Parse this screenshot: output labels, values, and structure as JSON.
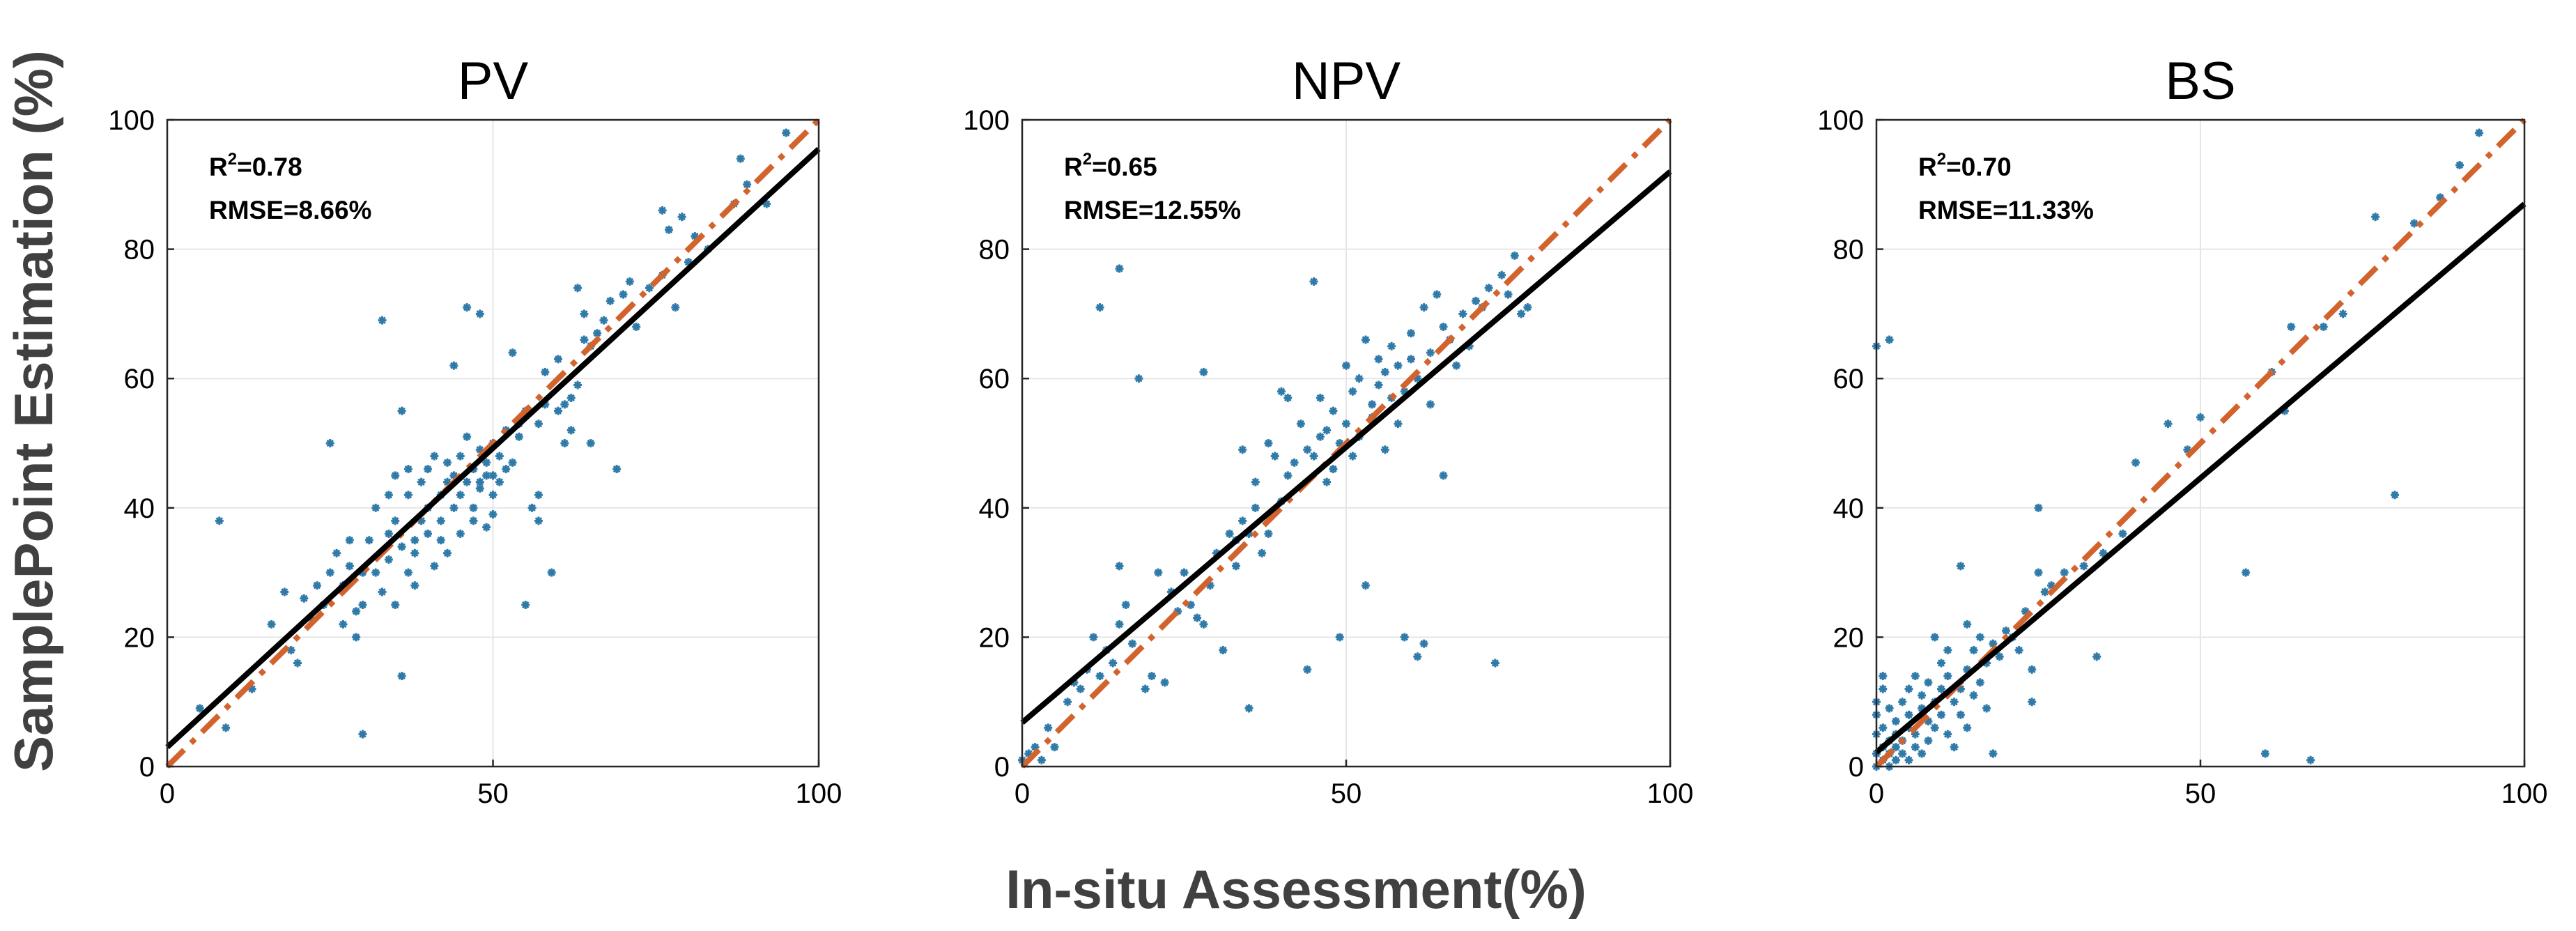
{
  "figure": {
    "ylabel": "SamplePoint Estimation (%)",
    "xlabel": "In-situ Assessment(%)"
  },
  "colors": {
    "points": "#2f7aa8",
    "fit_line": "#000000",
    "identity_line": "#d2632d"
  },
  "chart_data": [
    {
      "type": "scatter",
      "title": "PV",
      "stats": {
        "r2_label": "R",
        "r2_sup": "2",
        "r2_value": "=0.78",
        "rmse": "RMSE=8.66%"
      },
      "xlim": [
        0,
        100
      ],
      "ylim": [
        0,
        100
      ],
      "xticks": [
        0,
        50,
        100
      ],
      "yticks": [
        0,
        20,
        40,
        60,
        80,
        100
      ],
      "grid": true,
      "fit_line": {
        "y_at_0": 3,
        "y_at_100": 95.5
      },
      "identity_line": true,
      "points": [
        [
          5,
          9
        ],
        [
          8,
          38
        ],
        [
          9,
          6
        ],
        [
          13,
          12
        ],
        [
          16,
          22
        ],
        [
          18,
          27
        ],
        [
          19,
          18
        ],
        [
          20,
          16
        ],
        [
          21,
          26
        ],
        [
          22,
          23
        ],
        [
          23,
          28
        ],
        [
          24,
          25
        ],
        [
          25,
          50
        ],
        [
          25,
          30
        ],
        [
          26,
          33
        ],
        [
          27,
          28
        ],
        [
          27,
          22
        ],
        [
          28,
          31
        ],
        [
          28,
          35
        ],
        [
          29,
          24
        ],
        [
          29,
          20
        ],
        [
          30,
          25
        ],
        [
          30,
          30
        ],
        [
          30,
          5
        ],
        [
          31,
          35
        ],
        [
          32,
          40
        ],
        [
          32,
          30
        ],
        [
          33,
          27
        ],
        [
          33,
          69
        ],
        [
          34,
          32
        ],
        [
          34,
          36
        ],
        [
          34,
          42
        ],
        [
          35,
          38
        ],
        [
          35,
          25
        ],
        [
          35,
          45
        ],
        [
          36,
          14
        ],
        [
          36,
          34
        ],
        [
          36,
          55
        ],
        [
          37,
          30
        ],
        [
          37,
          42
        ],
        [
          37,
          46
        ],
        [
          38,
          35
        ],
        [
          38,
          33
        ],
        [
          38,
          28
        ],
        [
          39,
          44
        ],
        [
          39,
          38
        ],
        [
          40,
          40
        ],
        [
          40,
          36
        ],
        [
          40,
          46
        ],
        [
          41,
          48
        ],
        [
          41,
          31
        ],
        [
          42,
          42
        ],
        [
          42,
          38
        ],
        [
          42,
          35
        ],
        [
          43,
          44
        ],
        [
          43,
          47
        ],
        [
          43,
          33
        ],
        [
          44,
          40
        ],
        [
          44,
          45
        ],
        [
          44,
          62
        ],
        [
          45,
          36
        ],
        [
          45,
          42
        ],
        [
          45,
          48
        ],
        [
          46,
          44
        ],
        [
          46,
          71
        ],
        [
          46,
          51
        ],
        [
          47,
          40
        ],
        [
          47,
          46
        ],
        [
          47,
          38
        ],
        [
          48,
          43
        ],
        [
          48,
          44
        ],
        [
          48,
          70
        ],
        [
          48,
          49
        ],
        [
          49,
          45
        ],
        [
          49,
          47
        ],
        [
          49,
          37
        ],
        [
          50,
          50
        ],
        [
          50,
          45
        ],
        [
          50,
          42
        ],
        [
          50,
          39
        ],
        [
          51,
          44
        ],
        [
          51,
          48
        ],
        [
          52,
          46
        ],
        [
          52,
          52
        ],
        [
          53,
          47
        ],
        [
          53,
          64
        ],
        [
          54,
          53
        ],
        [
          54,
          51
        ],
        [
          55,
          25
        ],
        [
          55,
          55
        ],
        [
          56,
          40
        ],
        [
          57,
          42
        ],
        [
          57,
          38
        ],
        [
          57,
          53
        ],
        [
          58,
          56
        ],
        [
          58,
          61
        ],
        [
          59,
          30
        ],
        [
          60,
          63
        ],
        [
          60,
          55
        ],
        [
          61,
          56
        ],
        [
          61,
          50
        ],
        [
          62,
          57
        ],
        [
          62,
          52
        ],
        [
          63,
          59
        ],
        [
          63,
          74
        ],
        [
          64,
          70
        ],
        [
          64,
          66
        ],
        [
          65,
          65
        ],
        [
          65,
          50
        ],
        [
          66,
          67
        ],
        [
          67,
          69
        ],
        [
          68,
          72
        ],
        [
          69,
          46
        ],
        [
          70,
          73
        ],
        [
          71,
          75
        ],
        [
          72,
          68
        ],
        [
          74,
          74
        ],
        [
          76,
          76
        ],
        [
          76,
          86
        ],
        [
          77,
          83
        ],
        [
          78,
          71
        ],
        [
          79,
          85
        ],
        [
          80,
          78
        ],
        [
          81,
          82
        ],
        [
          83,
          80
        ],
        [
          87,
          87
        ],
        [
          88,
          94
        ],
        [
          89,
          90
        ],
        [
          92,
          87
        ],
        [
          95,
          98
        ]
      ]
    },
    {
      "type": "scatter",
      "title": "NPV",
      "stats": {
        "r2_label": "R",
        "r2_sup": "2",
        "r2_value": "=0.65",
        "rmse": "RMSE=12.55%"
      },
      "xlim": [
        0,
        100
      ],
      "ylim": [
        0,
        100
      ],
      "xticks": [
        0,
        50,
        100
      ],
      "yticks": [
        0,
        20,
        40,
        60,
        80,
        100
      ],
      "grid": true,
      "fit_line": {
        "y_at_0": 6.8,
        "y_at_100": 92
      },
      "identity_line": true,
      "points": [
        [
          0,
          1
        ],
        [
          1,
          2
        ],
        [
          2,
          3
        ],
        [
          3,
          1
        ],
        [
          4,
          6
        ],
        [
          5,
          3
        ],
        [
          7,
          10
        ],
        [
          8,
          13
        ],
        [
          9,
          12
        ],
        [
          10,
          15
        ],
        [
          11,
          20
        ],
        [
          12,
          71
        ],
        [
          12,
          14
        ],
        [
          13,
          18
        ],
        [
          14,
          16
        ],
        [
          15,
          77
        ],
        [
          15,
          31
        ],
        [
          15,
          22
        ],
        [
          16,
          25
        ],
        [
          17,
          19
        ],
        [
          18,
          60
        ],
        [
          19,
          12
        ],
        [
          20,
          14
        ],
        [
          21,
          30
        ],
        [
          22,
          13
        ],
        [
          23,
          27
        ],
        [
          24,
          24
        ],
        [
          25,
          30
        ],
        [
          26,
          25
        ],
        [
          27,
          23
        ],
        [
          28,
          22
        ],
        [
          28,
          61
        ],
        [
          29,
          28
        ],
        [
          30,
          33
        ],
        [
          31,
          18
        ],
        [
          32,
          36
        ],
        [
          33,
          35
        ],
        [
          33,
          31
        ],
        [
          34,
          38
        ],
        [
          34,
          49
        ],
        [
          35,
          36
        ],
        [
          35,
          9
        ],
        [
          36,
          40
        ],
        [
          36,
          44
        ],
        [
          37,
          33
        ],
        [
          38,
          50
        ],
        [
          38,
          36
        ],
        [
          39,
          48
        ],
        [
          40,
          58
        ],
        [
          40,
          41
        ],
        [
          41,
          45
        ],
        [
          41,
          57
        ],
        [
          42,
          47
        ],
        [
          43,
          53
        ],
        [
          44,
          15
        ],
        [
          44,
          49
        ],
        [
          45,
          75
        ],
        [
          45,
          48
        ],
        [
          46,
          51
        ],
        [
          46,
          57
        ],
        [
          47,
          44
        ],
        [
          47,
          52
        ],
        [
          48,
          55
        ],
        [
          48,
          46
        ],
        [
          49,
          20
        ],
        [
          49,
          50
        ],
        [
          50,
          53
        ],
        [
          50,
          62
        ],
        [
          51,
          58
        ],
        [
          51,
          48
        ],
        [
          52,
          60
        ],
        [
          52,
          51
        ],
        [
          53,
          66
        ],
        [
          53,
          28
        ],
        [
          54,
          56
        ],
        [
          54,
          54
        ],
        [
          55,
          63
        ],
        [
          55,
          59
        ],
        [
          56,
          61
        ],
        [
          56,
          49
        ],
        [
          57,
          57
        ],
        [
          57,
          65
        ],
        [
          58,
          53
        ],
        [
          58,
          62
        ],
        [
          59,
          20
        ],
        [
          59,
          58
        ],
        [
          60,
          63
        ],
        [
          60,
          67
        ],
        [
          61,
          17
        ],
        [
          61,
          60
        ],
        [
          62,
          19
        ],
        [
          62,
          71
        ],
        [
          63,
          64
        ],
        [
          63,
          56
        ],
        [
          64,
          73
        ],
        [
          65,
          45
        ],
        [
          65,
          68
        ],
        [
          66,
          66
        ],
        [
          67,
          62
        ],
        [
          68,
          70
        ],
        [
          69,
          65
        ],
        [
          70,
          72
        ],
        [
          71,
          71
        ],
        [
          72,
          74
        ],
        [
          73,
          16
        ],
        [
          74,
          76
        ],
        [
          75,
          73
        ],
        [
          76,
          79
        ],
        [
          77,
          70
        ],
        [
          78,
          71
        ]
      ]
    },
    {
      "type": "scatter",
      "title": "BS",
      "stats": {
        "r2_label": "R",
        "r2_sup": "2",
        "r2_value": "=0.70",
        "rmse": "RMSE=11.33%"
      },
      "xlim": [
        0,
        100
      ],
      "ylim": [
        0,
        100
      ],
      "xticks": [
        0,
        50,
        100
      ],
      "yticks": [
        0,
        20,
        40,
        60,
        80,
        100
      ],
      "grid": true,
      "fit_line": {
        "y_at_0": 2.2,
        "y_at_100": 87
      },
      "identity_line": true,
      "points": [
        [
          0,
          0
        ],
        [
          0,
          2
        ],
        [
          0,
          5
        ],
        [
          0,
          8
        ],
        [
          0,
          10
        ],
        [
          0,
          65
        ],
        [
          1,
          1
        ],
        [
          1,
          3
        ],
        [
          1,
          6
        ],
        [
          1,
          12
        ],
        [
          1,
          14
        ],
        [
          2,
          0
        ],
        [
          2,
          2
        ],
        [
          2,
          4
        ],
        [
          2,
          66
        ],
        [
          2,
          9
        ],
        [
          3,
          1
        ],
        [
          3,
          3
        ],
        [
          3,
          5
        ],
        [
          3,
          7
        ],
        [
          4,
          2
        ],
        [
          4,
          4
        ],
        [
          4,
          10
        ],
        [
          5,
          1
        ],
        [
          5,
          6
        ],
        [
          5,
          8
        ],
        [
          5,
          12
        ],
        [
          6,
          3
        ],
        [
          6,
          5
        ],
        [
          6,
          14
        ],
        [
          7,
          2
        ],
        [
          7,
          9
        ],
        [
          7,
          11
        ],
        [
          8,
          4
        ],
        [
          8,
          7
        ],
        [
          8,
          13
        ],
        [
          9,
          6
        ],
        [
          9,
          10
        ],
        [
          9,
          20
        ],
        [
          10,
          8
        ],
        [
          10,
          12
        ],
        [
          10,
          16
        ],
        [
          11,
          5
        ],
        [
          11,
          14
        ],
        [
          11,
          18
        ],
        [
          12,
          10
        ],
        [
          12,
          3
        ],
        [
          13,
          12
        ],
        [
          13,
          8
        ],
        [
          13,
          31
        ],
        [
          14,
          15
        ],
        [
          14,
          22
        ],
        [
          14,
          6
        ],
        [
          15,
          11
        ],
        [
          15,
          18
        ],
        [
          16,
          13
        ],
        [
          16,
          20
        ],
        [
          17,
          16
        ],
        [
          17,
          9
        ],
        [
          18,
          19
        ],
        [
          18,
          2
        ],
        [
          19,
          17
        ],
        [
          20,
          21
        ],
        [
          21,
          20
        ],
        [
          22,
          18
        ],
        [
          23,
          24
        ],
        [
          24,
          10
        ],
        [
          24,
          15
        ],
        [
          25,
          40
        ],
        [
          25,
          30
        ],
        [
          26,
          27
        ],
        [
          27,
          28
        ],
        [
          29,
          30
        ],
        [
          32,
          31
        ],
        [
          34,
          17
        ],
        [
          35,
          33
        ],
        [
          38,
          36
        ],
        [
          40,
          47
        ],
        [
          45,
          53
        ],
        [
          48,
          49
        ],
        [
          50,
          54
        ],
        [
          57,
          30
        ],
        [
          60,
          2
        ],
        [
          61,
          61
        ],
        [
          63,
          55
        ],
        [
          64,
          68
        ],
        [
          67,
          1
        ],
        [
          69,
          68
        ],
        [
          72,
          70
        ],
        [
          77,
          85
        ],
        [
          80,
          42
        ],
        [
          83,
          84
        ],
        [
          87,
          88
        ],
        [
          90,
          93
        ],
        [
          93,
          98
        ]
      ]
    }
  ]
}
